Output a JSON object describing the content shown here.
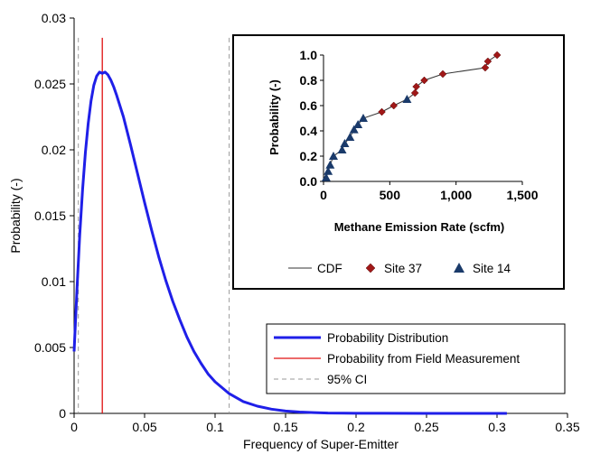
{
  "chart_data": [
    {
      "type": "line",
      "xlabel": "Frequency of Super-Emitter",
      "ylabel": "Probability (-)",
      "xlim": [
        0,
        0.35
      ],
      "ylim": [
        0,
        0.03
      ],
      "x_ticks": [
        "0",
        "0.05",
        "0.1",
        "0.15",
        "0.2",
        "0.25",
        "0.3",
        "0.35"
      ],
      "y_ticks": [
        "0",
        "0.005",
        "0.01",
        "0.015",
        "0.02",
        "0.025",
        "0.03"
      ],
      "grid": false,
      "legend_position": "bottom-right",
      "series": [
        {
          "name": "Probability Distribution",
          "color": "#1f1fe8",
          "x": [
            0,
            0.002,
            0.004,
            0.006,
            0.008,
            0.01,
            0.012,
            0.014,
            0.016,
            0.018,
            0.02,
            0.022,
            0.024,
            0.026,
            0.028,
            0.03,
            0.035,
            0.04,
            0.045,
            0.05,
            0.055,
            0.06,
            0.065,
            0.07,
            0.075,
            0.08,
            0.085,
            0.09,
            0.095,
            0.1,
            0.11,
            0.12,
            0.13,
            0.14,
            0.15,
            0.16,
            0.17,
            0.18,
            0.2,
            0.22,
            0.25,
            0.28,
            0.307
          ],
          "y": [
            0.0047,
            0.0093,
            0.0135,
            0.017,
            0.0198,
            0.022,
            0.0237,
            0.0249,
            0.0256,
            0.0259,
            0.0258,
            0.0259,
            0.0257,
            0.0253,
            0.0248,
            0.0242,
            0.0225,
            0.0204,
            0.0182,
            0.016,
            0.0139,
            0.0119,
            0.0101,
            0.0085,
            0.0071,
            0.0058,
            0.0047,
            0.0038,
            0.003,
            0.0024,
            0.0015,
            0.0009,
            0.00055,
            0.00032,
            0.00018,
            0.0001,
            6e-05,
            3e-05,
            1e-05,
            5e-06,
            2e-06,
            1e-06,
            0
          ]
        },
        {
          "name": "Probability from Field Measurement",
          "color": "#e01010",
          "x": [
            0.02,
            0.02
          ],
          "y": [
            0,
            0.0285
          ]
        },
        {
          "name": "95% CI",
          "color": "#9a9a9a",
          "x_lower": 0.003,
          "x_upper": 0.11
        }
      ]
    },
    {
      "type": "scatter",
      "xlabel": "Methane Emission Rate (scfm)",
      "ylabel": "Probability (-)",
      "xlim": [
        0,
        1500
      ],
      "ylim": [
        0,
        1.0
      ],
      "x_ticks": [
        "0",
        "500",
        "1,000",
        "1,500"
      ],
      "y_ticks": [
        "0.0",
        "0.2",
        "0.4",
        "0.6",
        "0.8",
        "1.0"
      ],
      "legend_position": "bottom",
      "series": [
        {
          "name": "CDF",
          "color": "#333333",
          "x": [
            20,
            35,
            50,
            75,
            140,
            160,
            200,
            230,
            260,
            300,
            440,
            530,
            630,
            690,
            700,
            760,
            900,
            1220,
            1240,
            1310
          ],
          "y": [
            0.03,
            0.08,
            0.13,
            0.2,
            0.25,
            0.3,
            0.35,
            0.41,
            0.45,
            0.5,
            0.55,
            0.6,
            0.65,
            0.7,
            0.75,
            0.8,
            0.85,
            0.9,
            0.95,
            1.0
          ]
        },
        {
          "name": "Site 37",
          "color": "#a01818",
          "x": [
            440,
            530,
            690,
            700,
            760,
            900,
            1220,
            1240,
            1310
          ],
          "y": [
            0.55,
            0.6,
            0.7,
            0.75,
            0.8,
            0.85,
            0.9,
            0.95,
            1.0
          ]
        },
        {
          "name": "Site 14",
          "color": "#1a3a6a",
          "x": [
            20,
            35,
            50,
            75,
            140,
            160,
            200,
            230,
            260,
            300,
            630
          ],
          "y": [
            0.03,
            0.08,
            0.13,
            0.2,
            0.25,
            0.3,
            0.35,
            0.41,
            0.45,
            0.5,
            0.65
          ]
        }
      ]
    }
  ]
}
